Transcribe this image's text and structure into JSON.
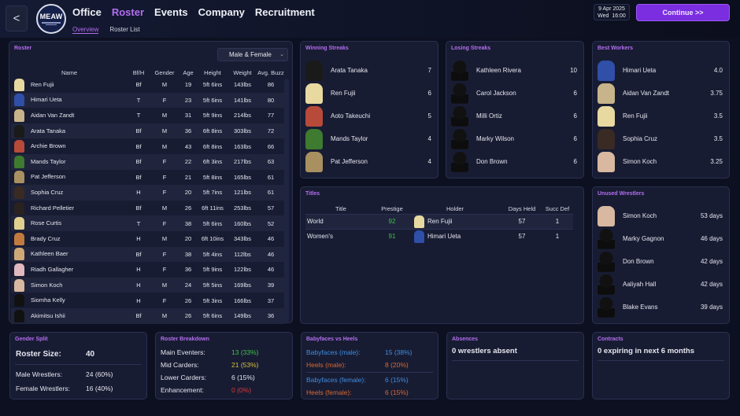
{
  "header": {
    "back_label": "<",
    "logo_text": "MEAW",
    "nav": [
      "Office",
      "Roster",
      "Events",
      "Company",
      "Recruitment"
    ],
    "active_nav": "Roster",
    "subnav": [
      "Overview",
      "Roster List"
    ],
    "active_subnav": "Overview",
    "date_line1": "9 Apr 2025",
    "date_line2": "Wed  16:00",
    "continue_label": "Continue >>"
  },
  "roster": {
    "title": "Roster",
    "filter_value": "Male & Female",
    "columns": [
      "Name",
      "Bf/H",
      "Gender",
      "Age",
      "Height",
      "Weight",
      "Avg. Buzz"
    ],
    "rows": [
      {
        "name": "Ren Fujii",
        "bfh": "Bf",
        "gender": "M",
        "age": "19",
        "height": "5ft 6ins",
        "weight": "143lbs",
        "buzz": "86",
        "buzz_color": "green",
        "avatar": "#e8d9a0"
      },
      {
        "name": "Himari Ueta",
        "bfh": "T",
        "gender": "F",
        "age": "23",
        "height": "5ft 6ins",
        "weight": "141lbs",
        "buzz": "80",
        "buzz_color": "green",
        "avatar": "#2f4fa8"
      },
      {
        "name": "Aidan Van Zandt",
        "bfh": "T",
        "gender": "M",
        "age": "31",
        "height": "5ft 9ins",
        "weight": "214lbs",
        "buzz": "77",
        "buzz_color": "green",
        "avatar": "#c8b48a"
      },
      {
        "name": "Arata Tanaka",
        "bfh": "Bf",
        "gender": "M",
        "age": "36",
        "height": "6ft 8ins",
        "weight": "303lbs",
        "buzz": "72",
        "buzz_color": "green",
        "avatar": "#1a1a1a"
      },
      {
        "name": "Archie Brown",
        "bfh": "Bf",
        "gender": "M",
        "age": "43",
        "height": "6ft 8ins",
        "weight": "163lbs",
        "buzz": "66",
        "buzz_color": "green",
        "avatar": "#b84a3a"
      },
      {
        "name": "Mands Taylor",
        "bfh": "Bf",
        "gender": "F",
        "age": "22",
        "height": "6ft 3ins",
        "weight": "217lbs",
        "buzz": "63",
        "buzz_color": "green",
        "avatar": "#3e7a30"
      },
      {
        "name": "Pat Jefferson",
        "bfh": "Bf",
        "gender": "F",
        "age": "21",
        "height": "5ft 8ins",
        "weight": "165lbs",
        "buzz": "61",
        "buzz_color": "green",
        "avatar": "#a89060"
      },
      {
        "name": "Sophia Cruz",
        "bfh": "H",
        "gender": "F",
        "age": "20",
        "height": "5ft 7ins",
        "weight": "121lbs",
        "buzz": "61",
        "buzz_color": "green",
        "avatar": "#3a2a24"
      },
      {
        "name": "Richard Pelletier",
        "bfh": "Bf",
        "gender": "M",
        "age": "26",
        "height": "6ft 11ins",
        "weight": "253lbs",
        "buzz": "57",
        "buzz_color": "green",
        "avatar": "#2a2220"
      },
      {
        "name": "Rose Curtis",
        "bfh": "T",
        "gender": "F",
        "age": "38",
        "height": "5ft 6ins",
        "weight": "160lbs",
        "buzz": "52",
        "buzz_color": "green",
        "avatar": "#e0d090"
      },
      {
        "name": "Brady Cruz",
        "bfh": "H",
        "gender": "M",
        "age": "20",
        "height": "6ft 10ins",
        "weight": "343lbs",
        "buzz": "46",
        "buzz_color": "green",
        "avatar": "#c07a40"
      },
      {
        "name": "Kathleen Baer",
        "bfh": "Bf",
        "gender": "F",
        "age": "38",
        "height": "5ft 4ins",
        "weight": "112lbs",
        "buzz": "46",
        "buzz_color": "green",
        "avatar": "#d0a878"
      },
      {
        "name": "Riadh Gallagher",
        "bfh": "H",
        "gender": "F",
        "age": "36",
        "height": "5ft 9ins",
        "weight": "122lbs",
        "buzz": "46",
        "buzz_color": "green",
        "avatar": "#e0b8c0"
      },
      {
        "name": "Simon Koch",
        "bfh": "H",
        "gender": "M",
        "age": "24",
        "height": "5ft 5ins",
        "weight": "169lbs",
        "buzz": "39",
        "buzz_color": "yellow",
        "avatar": "#d8b8a0"
      },
      {
        "name": "Siomha Kelly",
        "bfh": "H",
        "gender": "F",
        "age": "26",
        "height": "5ft 3ins",
        "weight": "166lbs",
        "buzz": "37",
        "buzz_color": "yellow",
        "avatar": "#111111"
      },
      {
        "name": "Akimitsu Ishii",
        "bfh": "Bf",
        "gender": "M",
        "age": "26",
        "height": "5ft 6ins",
        "weight": "149lbs",
        "buzz": "36",
        "buzz_color": "yellow",
        "avatar": "#111111"
      }
    ]
  },
  "winning_streaks": {
    "title": "Winning Streaks",
    "items": [
      {
        "name": "Arata Tanaka",
        "value": "7",
        "avatar": "#1a1a1a"
      },
      {
        "name": "Ren Fujii",
        "value": "6",
        "avatar": "#e8d9a0"
      },
      {
        "name": "Aoto Takeuchi",
        "value": "5",
        "avatar": "#b84a3a"
      },
      {
        "name": "Mands Taylor",
        "value": "4",
        "avatar": "#3e7a30"
      },
      {
        "name": "Pat Jefferson",
        "value": "4",
        "avatar": "#a89060"
      }
    ]
  },
  "losing_streaks": {
    "title": "Losing Streaks",
    "items": [
      {
        "name": "Kathleen Rivera",
        "value": "10"
      },
      {
        "name": "Carol Jackson",
        "value": "6"
      },
      {
        "name": "Milli Ortiz",
        "value": "6"
      },
      {
        "name": "Marky Wilson",
        "value": "6"
      },
      {
        "name": "Don Brown",
        "value": "6"
      }
    ]
  },
  "best_workers": {
    "title": "Best Workers",
    "items": [
      {
        "name": "Himari Ueta",
        "value": "4.0",
        "avatar": "#2f4fa8"
      },
      {
        "name": "Aidan Van Zandt",
        "value": "3.75",
        "avatar": "#c8b48a"
      },
      {
        "name": "Ren Fujii",
        "value": "3.5",
        "avatar": "#e8d9a0"
      },
      {
        "name": "Sophia Cruz",
        "value": "3.5",
        "avatar": "#3a2a24"
      },
      {
        "name": "Simon Koch",
        "value": "3.25",
        "avatar": "#d8b8a0"
      }
    ]
  },
  "titles": {
    "title": "Titles",
    "columns": [
      "Title",
      "Prestige",
      "Holder",
      "Days Held",
      "Succ Def"
    ],
    "rows": [
      {
        "title": "World",
        "prestige": "92",
        "holder": "Ren Fujii",
        "days": "57",
        "succ": "1",
        "avatar": "#e8d9a0"
      },
      {
        "title": "Women's",
        "prestige": "91",
        "holder": "Himari Ueta",
        "days": "57",
        "succ": "1",
        "avatar": "#2f4fa8"
      }
    ]
  },
  "unused": {
    "title": "Unused Wrestlers",
    "items": [
      {
        "name": "Simon Koch",
        "value": "53 days",
        "avatar": "#d8b8a0"
      },
      {
        "name": "Marky Gagnon",
        "value": "46 days"
      },
      {
        "name": "Don Brown",
        "value": "42 days"
      },
      {
        "name": "Aaliyah Hall",
        "value": "42 days"
      },
      {
        "name": "Blake Evans",
        "value": "39 days"
      }
    ]
  },
  "gender_split": {
    "title": "Gender Split",
    "size_label": "Roster Size:",
    "size_value": "40",
    "male_label": "Male Wrestlers:",
    "male_value": "24 (60%)",
    "female_label": "Female Wrestlers:",
    "female_value": "16 (40%)"
  },
  "breakdown": {
    "title": "Roster Breakdown",
    "rows": [
      {
        "label": "Main Eventers:",
        "value": "13 (33%)",
        "color": "green"
      },
      {
        "label": "Mid Carders:",
        "value": "21 (53%)",
        "color": "yellow"
      },
      {
        "label": "Lower Carders:",
        "value": "6 (15%)",
        "color": "white"
      },
      {
        "label": "Enhancement:",
        "value": "0 (0%)",
        "color": "red"
      }
    ]
  },
  "faces_heels": {
    "title": "Babyfaces vs Heels",
    "rows": [
      {
        "label": "Babyfaces (male):",
        "value": "15 (38%)",
        "color": "blue"
      },
      {
        "label": "Heels (male):",
        "value": "8 (20%)",
        "color": "orange"
      },
      {
        "label": "Babyfaces (female):",
        "value": "6 (15%)",
        "color": "blue"
      },
      {
        "label": "Heels (female):",
        "value": "6 (15%)",
        "color": "orange"
      }
    ]
  },
  "absences": {
    "title": "Absences",
    "text": "0 wrestlers absent"
  },
  "contracts": {
    "title": "Contracts",
    "text": "0 expiring in next 6 months"
  }
}
